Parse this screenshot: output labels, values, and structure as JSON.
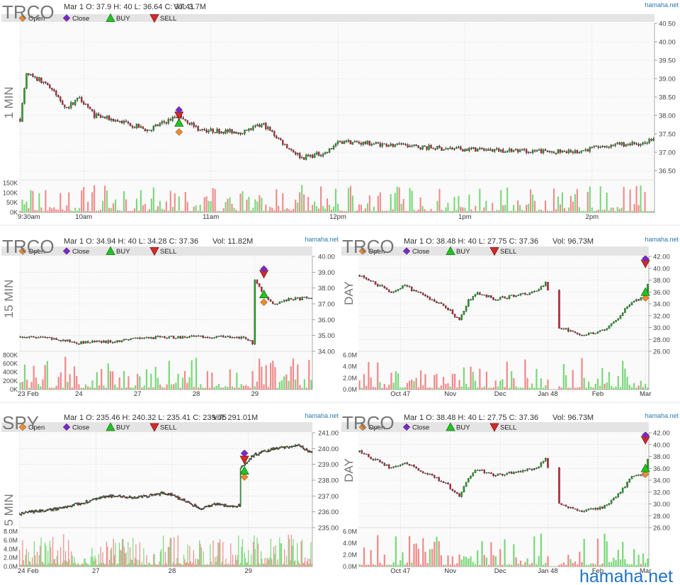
{
  "brand": "hamaha.net",
  "watermark": "hamaha.net",
  "legend": [
    {
      "label": "Open",
      "color": "#f0892a",
      "shape": "diamond"
    },
    {
      "label": "Close",
      "color": "#7a28c8",
      "shape": "diamond"
    },
    {
      "label": "BUY",
      "color": "#22c322",
      "shape": "triangle-up"
    },
    {
      "label": "SELL",
      "color": "#d42a2a",
      "shape": "triangle-down"
    }
  ],
  "colors": {
    "up": "#22a422",
    "down": "#c8283c",
    "wick": "#111111",
    "vol_up": "#7ad87a",
    "vol_down": "#f08a8a",
    "band": "#e4e4e4",
    "grid": "#d8d8d8"
  },
  "chart_data": [
    {
      "id": "trco_1min",
      "type": "candlestick",
      "symbol": "TRCO",
      "timeframe": "1 MIN",
      "info": "Mar 1 O: 37.9 H: 40 L: 36.64 C: 37.41",
      "vol": "Vol: 3.7M",
      "ylim": [
        36.25,
        40.5
      ],
      "yticks": [
        "40.50",
        "40.00",
        "39.50",
        "39.00",
        "38.50",
        "38.00",
        "37.50",
        "37.00",
        "36.50"
      ],
      "vticks": [
        "150K",
        "100K",
        "50K",
        "0K"
      ],
      "vmax": 150000,
      "xticks": [
        {
          "label": "9:30am",
          "i": 0
        },
        {
          "label": "10am",
          "i": 30
        },
        {
          "label": "11am",
          "i": 90
        },
        {
          "label": "12pm",
          "i": 150
        },
        {
          "label": "1pm",
          "i": 210
        },
        {
          "label": "2pm",
          "i": 270
        }
      ],
      "n": 300,
      "keypoints": [
        [
          0,
          37.9
        ],
        [
          3,
          39.1
        ],
        [
          12,
          38.9
        ],
        [
          22,
          38.2
        ],
        [
          28,
          38.5
        ],
        [
          35,
          38.0
        ],
        [
          50,
          37.8
        ],
        [
          60,
          37.6
        ],
        [
          75,
          38.0
        ],
        [
          85,
          37.6
        ],
        [
          105,
          37.55
        ],
        [
          115,
          37.75
        ],
        [
          125,
          37.2
        ],
        [
          133,
          36.85
        ],
        [
          145,
          37.0
        ],
        [
          150,
          37.3
        ],
        [
          200,
          37.1
        ],
        [
          260,
          37.0
        ],
        [
          280,
          37.2
        ],
        [
          295,
          37.25
        ],
        [
          299,
          37.41
        ]
      ],
      "markers": [
        {
          "i": 75,
          "type": "open",
          "price": 37.55
        },
        {
          "i": 75,
          "type": "buy",
          "price": 37.8
        },
        {
          "i": 75,
          "type": "sell",
          "price": 38.0
        },
        {
          "i": 75,
          "type": "close",
          "price": 38.15
        }
      ]
    },
    {
      "id": "trco_15min",
      "type": "candlestick",
      "symbol": "TRCO",
      "timeframe": "15 MIN",
      "info": "Mar 1 O: 34.94 H: 40 L: 34.28 C: 37.36",
      "vol": "Vol: 11.82M",
      "ylim": [
        34.0,
        40.0
      ],
      "yticks": [
        "40.00",
        "39.00",
        "38.00",
        "37.00",
        "36.00",
        "35.00",
        "34.00"
      ],
      "vticks": [
        "800K",
        "600K",
        "400K",
        "200K",
        "0K"
      ],
      "vmax": 800000,
      "xticks": [
        {
          "label": "23 Feb",
          "i": 0
        },
        {
          "label": "24",
          "i": 26
        },
        {
          "label": "27",
          "i": 52
        },
        {
          "label": "28",
          "i": 78
        },
        {
          "label": "29",
          "i": 104
        }
      ],
      "n": 130,
      "keypoints": [
        [
          0,
          34.9
        ],
        [
          10,
          34.85
        ],
        [
          26,
          34.55
        ],
        [
          40,
          34.6
        ],
        [
          52,
          34.85
        ],
        [
          78,
          34.9
        ],
        [
          100,
          34.85
        ],
        [
          103,
          34.5
        ],
        [
          104,
          38.5
        ],
        [
          108,
          37.5
        ],
        [
          112,
          37.0
        ],
        [
          120,
          37.3
        ],
        [
          129,
          37.36
        ]
      ],
      "markers": [
        {
          "i": 108,
          "type": "open",
          "price": 37.1
        },
        {
          "i": 108,
          "type": "buy",
          "price": 37.6
        },
        {
          "i": 108,
          "type": "sell",
          "price": 38.9
        },
        {
          "i": 108,
          "type": "close",
          "price": 39.2
        }
      ]
    },
    {
      "id": "trco_day_a",
      "type": "candlestick",
      "symbol": "TRCO",
      "timeframe": "DAY",
      "info": "Mar 1 O: 38.48 H: 40 L: 27.75 C: 37.36",
      "vol": "Vol: 96.73M",
      "ylim": [
        26.0,
        42.0
      ],
      "yticks": [
        "42.00",
        "40.00",
        "38.00",
        "36.00",
        "34.00",
        "32.00",
        "30.00",
        "28.00",
        "26.00"
      ],
      "vticks": [
        "6.0M",
        "4.0M",
        "2.0M",
        "0.0M"
      ],
      "vmax": 6000000,
      "xticks": [
        {
          "label": "Oct 47",
          "i": 18
        },
        {
          "label": "Nov",
          "i": 40
        },
        {
          "label": "Dec",
          "i": 62
        },
        {
          "label": "Jan 48",
          "i": 83
        },
        {
          "label": "Feb",
          "i": 105
        },
        {
          "label": "Mar",
          "i": 126
        }
      ],
      "n": 128,
      "keypoints": [
        [
          0,
          38.8
        ],
        [
          8,
          37.2
        ],
        [
          14,
          36.0
        ],
        [
          20,
          37.0
        ],
        [
          30,
          35.0
        ],
        [
          38,
          33.5
        ],
        [
          44,
          31.2
        ],
        [
          48,
          34.5
        ],
        [
          52,
          35.8
        ],
        [
          60,
          34.8
        ],
        [
          70,
          35.5
        ],
        [
          78,
          36.0
        ],
        [
          82,
          37.5
        ],
        [
          88,
          30.0
        ],
        [
          98,
          28.8
        ],
        [
          108,
          29.5
        ],
        [
          115,
          32.0
        ],
        [
          120,
          34.5
        ],
        [
          125,
          35.0
        ],
        [
          127,
          37.36
        ]
      ],
      "gaps": [
        [
          84,
          87
        ]
      ],
      "markers": [
        {
          "i": 126,
          "type": "open",
          "price": 35.0
        },
        {
          "i": 126,
          "type": "buy",
          "price": 36.0
        },
        {
          "i": 126,
          "type": "sell",
          "price": 40.8
        },
        {
          "i": 126,
          "type": "close",
          "price": 41.6
        }
      ]
    },
    {
      "id": "spy_5min",
      "type": "candlestick",
      "symbol": "SPY",
      "timeframe": "5 MIN",
      "info": "Mar 1 O: 235.46 H: 240.32 L: 235.41 C: 239.75",
      "vol": "Vol: 291.01M",
      "ylim": [
        235.0,
        241.0
      ],
      "yticks": [
        "241.00",
        "240.00",
        "239.00",
        "238.00",
        "237.00",
        "236.00",
        "235.00"
      ],
      "vticks": [
        "8.0M",
        "6.0M",
        "4.0M",
        "2.0M",
        "0.0M"
      ],
      "vmax": 8000000,
      "xticks": [
        {
          "label": "24 Feb",
          "i": 0
        },
        {
          "label": "27",
          "i": 78
        },
        {
          "label": "28",
          "i": 156
        },
        {
          "label": "29",
          "i": 234
        }
      ],
      "n": 300,
      "keypoints": [
        [
          0,
          235.9
        ],
        [
          30,
          236.1
        ],
        [
          60,
          236.5
        ],
        [
          90,
          237.0
        ],
        [
          120,
          236.9
        ],
        [
          150,
          237.2
        ],
        [
          170,
          236.7
        ],
        [
          185,
          236.2
        ],
        [
          200,
          236.5
        ],
        [
          220,
          236.3
        ],
        [
          225,
          236.4
        ],
        [
          226,
          238.8
        ],
        [
          240,
          239.6
        ],
        [
          260,
          240.0
        ],
        [
          285,
          240.2
        ],
        [
          299,
          239.75
        ]
      ],
      "markers": [
        {
          "i": 230,
          "type": "open",
          "price": 238.2
        },
        {
          "i": 230,
          "type": "buy",
          "price": 238.6
        },
        {
          "i": 230,
          "type": "sell",
          "price": 239.3
        },
        {
          "i": 230,
          "type": "close",
          "price": 239.7
        }
      ]
    },
    {
      "id": "trco_day_b",
      "type": "candlestick",
      "symbol": "TRCO",
      "timeframe": "DAY",
      "info": "Mar 1 O: 38.48 H: 40 L: 27.75 C: 37.36",
      "vol": "Vol: 96.73M",
      "ylim": [
        26.0,
        42.0
      ],
      "yticks": [
        "42.00",
        "40.00",
        "38.00",
        "36.00",
        "34.00",
        "32.00",
        "30.00",
        "28.00",
        "26.00"
      ],
      "vticks": [
        "6.0M",
        "4.0M",
        "2.0M",
        "0.0M"
      ],
      "vmax": 6000000,
      "xticks": [
        {
          "label": "Oct 47",
          "i": 18
        },
        {
          "label": "Nov",
          "i": 40
        },
        {
          "label": "Dec",
          "i": 62
        },
        {
          "label": "Jan 48",
          "i": 83
        },
        {
          "label": "Feb",
          "i": 105
        },
        {
          "label": "Mar",
          "i": 126
        }
      ],
      "n": 128,
      "keypoints": [
        [
          0,
          38.8
        ],
        [
          8,
          37.2
        ],
        [
          14,
          36.0
        ],
        [
          20,
          37.0
        ],
        [
          30,
          35.0
        ],
        [
          38,
          33.5
        ],
        [
          44,
          31.2
        ],
        [
          48,
          34.5
        ],
        [
          52,
          35.8
        ],
        [
          60,
          34.8
        ],
        [
          70,
          35.5
        ],
        [
          78,
          36.0
        ],
        [
          82,
          37.5
        ],
        [
          88,
          30.0
        ],
        [
          98,
          28.8
        ],
        [
          108,
          29.5
        ],
        [
          115,
          32.0
        ],
        [
          120,
          34.5
        ],
        [
          125,
          35.0
        ],
        [
          127,
          37.36
        ]
      ],
      "gaps": [
        [
          84,
          87
        ]
      ],
      "markers": [
        {
          "i": 126,
          "type": "open",
          "price": 35.0
        },
        {
          "i": 126,
          "type": "buy",
          "price": 36.0
        },
        {
          "i": 126,
          "type": "sell",
          "price": 40.8
        },
        {
          "i": 126,
          "type": "close",
          "price": 41.6
        }
      ]
    }
  ]
}
